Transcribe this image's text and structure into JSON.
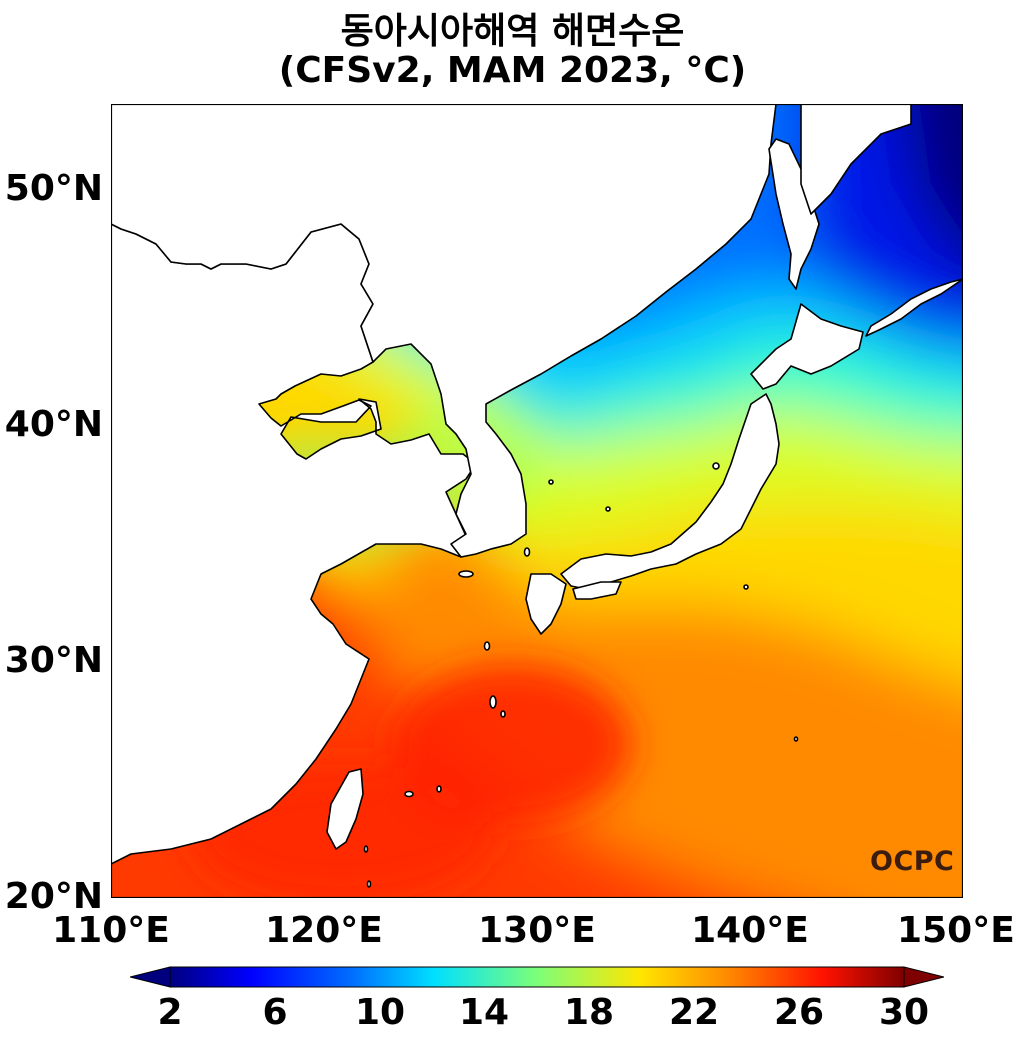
{
  "title": {
    "line1": "동아시아해역 해면수온",
    "line2": "(CFSv2, MAM 2023, °C)"
  },
  "map": {
    "lon_range": [
      110,
      150
    ],
    "lat_range": [
      20,
      53.5
    ],
    "y_ticks": [
      {
        "value": 50,
        "label": "50°N"
      },
      {
        "value": 40,
        "label": "40°N"
      },
      {
        "value": 30,
        "label": "30°N"
      },
      {
        "value": 20,
        "label": "20°N"
      }
    ],
    "x_ticks": [
      {
        "value": 110,
        "label": "110°E"
      },
      {
        "value": 120,
        "label": "120°E"
      },
      {
        "value": 130,
        "label": "130°E"
      },
      {
        "value": 140,
        "label": "140°E"
      },
      {
        "value": 150,
        "label": "150°E"
      }
    ],
    "land_color": "#ffffff",
    "coastline_color": "#000000"
  },
  "colorbar": {
    "range": [
      2,
      30
    ],
    "ticks": [
      {
        "value": 2,
        "label": "2"
      },
      {
        "value": 6,
        "label": "6"
      },
      {
        "value": 10,
        "label": "10"
      },
      {
        "value": 14,
        "label": "14"
      },
      {
        "value": 18,
        "label": "18"
      },
      {
        "value": 22,
        "label": "22"
      },
      {
        "value": 26,
        "label": "26"
      },
      {
        "value": 30,
        "label": "30"
      }
    ],
    "colormap": "jet",
    "extend": "both"
  },
  "logo": {
    "text": "OCPC"
  }
}
